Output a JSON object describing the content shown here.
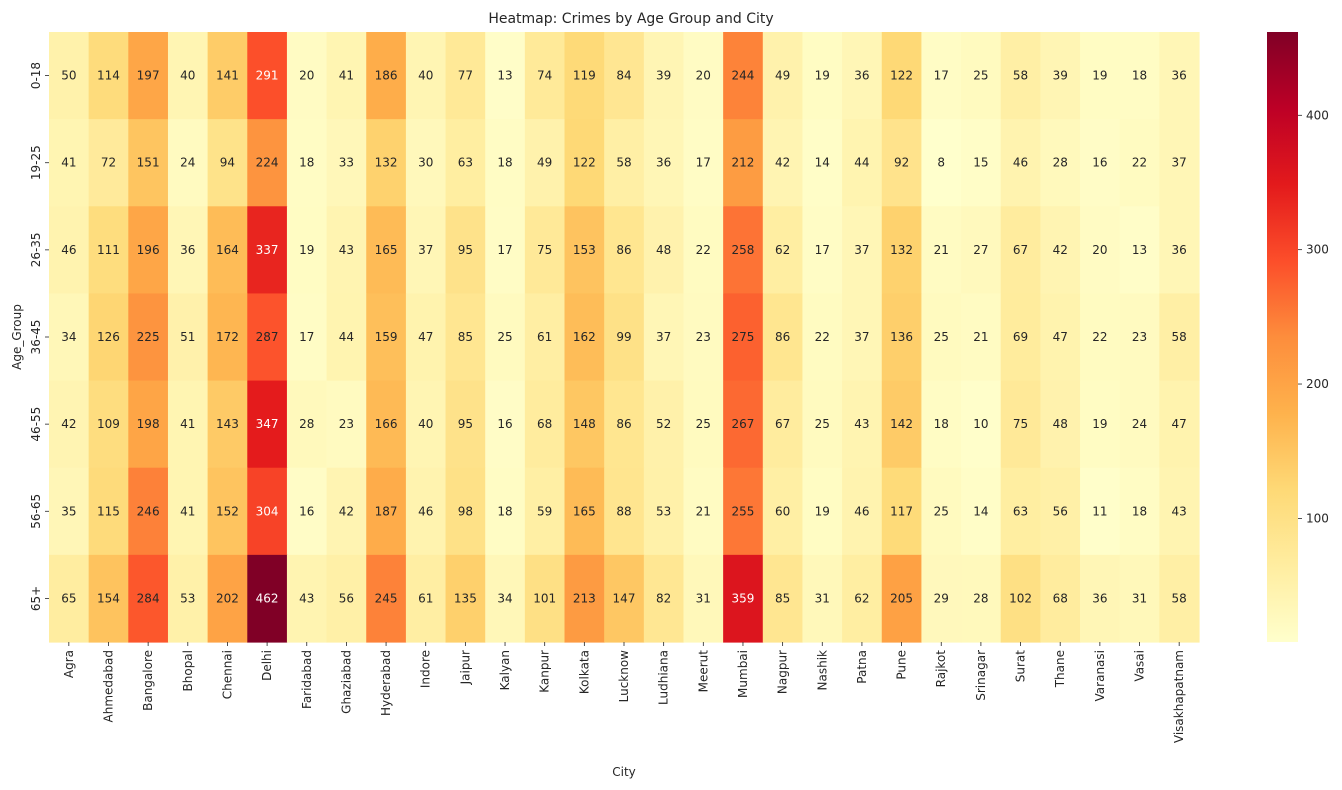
{
  "chart_data": {
    "type": "heatmap",
    "title": "Heatmap: Crimes by Age Group and City",
    "xlabel": "City",
    "ylabel": "Age_Group",
    "x_categories": [
      "Agra",
      "Ahmedabad",
      "Bangalore",
      "Bhopal",
      "Chennai",
      "Delhi",
      "Faridabad",
      "Ghaziabad",
      "Hyderabad",
      "Indore",
      "Jaipur",
      "Kalyan",
      "Kanpur",
      "Kolkata",
      "Lucknow",
      "Ludhiana",
      "Meerut",
      "Mumbai",
      "Nagpur",
      "Nashik",
      "Patna",
      "Pune",
      "Rajkot",
      "Srinagar",
      "Surat",
      "Thane",
      "Varanasi",
      "Vasai",
      "Visakhapatnam"
    ],
    "y_categories": [
      "0-18",
      "19-25",
      "26-35",
      "36-45",
      "46-55",
      "56-65",
      "65+"
    ],
    "values": [
      [
        50,
        114,
        197,
        40,
        141,
        291,
        20,
        41,
        186,
        40,
        77,
        13,
        74,
        119,
        84,
        39,
        20,
        244,
        49,
        19,
        36,
        122,
        17,
        25,
        58,
        39,
        19,
        18,
        36
      ],
      [
        41,
        72,
        151,
        24,
        94,
        224,
        18,
        33,
        132,
        30,
        63,
        18,
        49,
        122,
        58,
        36,
        17,
        212,
        42,
        14,
        44,
        92,
        8,
        15,
        46,
        28,
        16,
        22,
        37
      ],
      [
        46,
        111,
        196,
        36,
        164,
        337,
        19,
        43,
        165,
        37,
        95,
        17,
        75,
        153,
        86,
        48,
        22,
        258,
        62,
        17,
        37,
        132,
        21,
        27,
        67,
        42,
        20,
        13,
        36
      ],
      [
        34,
        126,
        225,
        51,
        172,
        287,
        17,
        44,
        159,
        47,
        85,
        25,
        61,
        162,
        99,
        37,
        23,
        275,
        86,
        22,
        37,
        136,
        25,
        21,
        69,
        47,
        22,
        23,
        58
      ],
      [
        42,
        109,
        198,
        41,
        143,
        347,
        28,
        23,
        166,
        40,
        95,
        16,
        68,
        148,
        86,
        52,
        25,
        267,
        67,
        25,
        43,
        142,
        18,
        10,
        75,
        48,
        19,
        24,
        47
      ],
      [
        35,
        115,
        246,
        41,
        152,
        304,
        16,
        42,
        187,
        46,
        98,
        18,
        59,
        165,
        88,
        53,
        21,
        255,
        60,
        19,
        46,
        117,
        25,
        14,
        63,
        56,
        11,
        18,
        43
      ],
      [
        65,
        154,
        284,
        53,
        202,
        462,
        43,
        56,
        245,
        61,
        135,
        34,
        101,
        213,
        147,
        82,
        31,
        359,
        85,
        31,
        62,
        205,
        29,
        28,
        102,
        68,
        36,
        31,
        58
      ]
    ],
    "colormap": "YlOrRd",
    "vmin": 8,
    "vmax": 462,
    "colorbar_ticks": [
      100,
      200,
      300,
      400
    ]
  }
}
